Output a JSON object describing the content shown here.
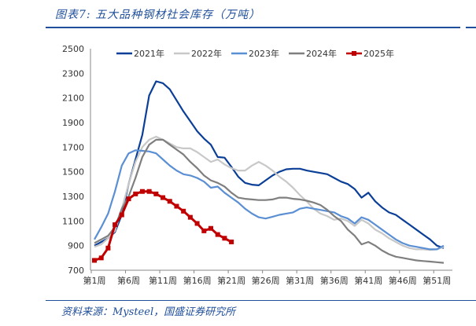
{
  "header": {
    "title": "图表7:  五大品种钢材社会库存（万吨）"
  },
  "footer": {
    "source": "资料来源：Mysteel，国盛证券研究所"
  },
  "chart_data": {
    "type": "line",
    "title": "五大品种钢材社会库存（万吨）",
    "xlabel": "",
    "ylabel": "",
    "ylim": [
      700,
      2500
    ],
    "yticks": [
      700,
      900,
      1100,
      1300,
      1500,
      1700,
      1900,
      2100,
      2300,
      2500
    ],
    "xlim": [
      1,
      52
    ],
    "xticks": [
      1,
      6,
      11,
      16,
      21,
      26,
      31,
      36,
      41,
      46,
      51
    ],
    "xtick_labels": [
      "第1周",
      "第6周",
      "第11周",
      "第16周",
      "第21周",
      "第26周",
      "第31周",
      "第36周",
      "第41周",
      "第46周",
      "第51周"
    ],
    "legend_position": "top",
    "series": [
      {
        "name": "2021年",
        "color": "#0b3f97",
        "marker": false,
        "values": [
          900,
          930,
          960,
          1010,
          1150,
          1400,
          1600,
          1800,
          2120,
          2235,
          2220,
          2170,
          2080,
          1990,
          1910,
          1830,
          1770,
          1720,
          1620,
          1615,
          1540,
          1460,
          1410,
          1395,
          1390,
          1430,
          1470,
          1500,
          1520,
          1525,
          1525,
          1510,
          1500,
          1490,
          1480,
          1450,
          1420,
          1400,
          1360,
          1290,
          1330,
          1260,
          1210,
          1170,
          1150,
          1110,
          1070,
          1030,
          990,
          950,
          900,
          880
        ]
      },
      {
        "name": "2022年",
        "color": "#c8c8c8",
        "marker": false,
        "values": [
          890,
          910,
          960,
          1020,
          1200,
          1400,
          1580,
          1700,
          1760,
          1785,
          1760,
          1730,
          1700,
          1690,
          1690,
          1660,
          1620,
          1580,
          1600,
          1560,
          1530,
          1510,
          1510,
          1550,
          1580,
          1550,
          1510,
          1460,
          1420,
          1370,
          1310,
          1260,
          1200,
          1160,
          1140,
          1110,
          1120,
          1100,
          1060,
          1110,
          1080,
          1030,
          1000,
          960,
          930,
          900,
          880,
          870,
          870,
          865,
          870,
          890
        ]
      },
      {
        "name": "2023年",
        "color": "#5b8fd4",
        "marker": false,
        "values": [
          950,
          1050,
          1160,
          1340,
          1550,
          1650,
          1675,
          1670,
          1665,
          1650,
          1600,
          1550,
          1510,
          1480,
          1470,
          1450,
          1420,
          1370,
          1380,
          1330,
          1290,
          1250,
          1200,
          1160,
          1130,
          1120,
          1135,
          1150,
          1160,
          1170,
          1200,
          1210,
          1200,
          1190,
          1180,
          1170,
          1140,
          1120,
          1080,
          1130,
          1110,
          1070,
          1030,
          990,
          950,
          920,
          900,
          890,
          880,
          870,
          870,
          900
        ]
      },
      {
        "name": "2024年",
        "color": "#7f7f7f",
        "marker": false,
        "values": [
          920,
          950,
          980,
          1050,
          1200,
          1300,
          1450,
          1620,
          1720,
          1760,
          1760,
          1720,
          1680,
          1640,
          1580,
          1530,
          1470,
          1430,
          1410,
          1380,
          1330,
          1290,
          1280,
          1275,
          1270,
          1270,
          1275,
          1290,
          1290,
          1280,
          1275,
          1265,
          1250,
          1230,
          1190,
          1140,
          1100,
          1030,
          980,
          910,
          930,
          900,
          860,
          830,
          810,
          800,
          790,
          780,
          775,
          770,
          765,
          760
        ]
      },
      {
        "name": "2025年",
        "color": "#c00000",
        "marker": true,
        "values": [
          780,
          800,
          880,
          1070,
          1150,
          1280,
          1320,
          1340,
          1340,
          1320,
          1290,
          1260,
          1220,
          1180,
          1130,
          1080,
          1020,
          1040,
          990,
          960,
          930
        ]
      }
    ]
  }
}
